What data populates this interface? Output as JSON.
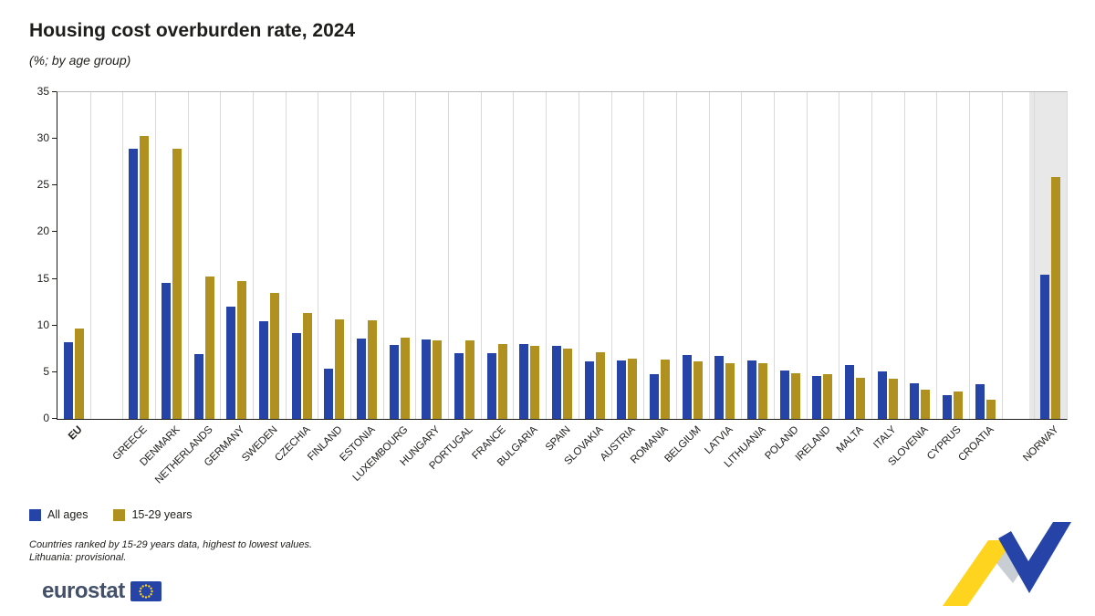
{
  "header": {
    "title": "Housing cost overburden rate, 2024",
    "subtitle": "(%; by age group)"
  },
  "footnotes": [
    "Countries ranked by 15-29 years data, highest to lowest values.",
    "Lithuania: provisional."
  ],
  "logo": {
    "text": "eurostat"
  },
  "chart_data": {
    "type": "bar",
    "title": "Housing cost overburden rate, 2024",
    "subtitle": "(%; by age group)",
    "ylim": [
      0,
      35
    ],
    "yticks": [
      0,
      5,
      10,
      15,
      20,
      25,
      30,
      35
    ],
    "grid": "vertical category separators only",
    "legend_position": "bottom-left",
    "highlight_band_color": "#e8e8e8",
    "series": [
      {
        "id": "all_ages",
        "name": "All ages",
        "color": "#2644A7"
      },
      {
        "id": "y15_29",
        "name": "15-29 years",
        "color": "#B09120"
      }
    ],
    "groups": [
      {
        "label": "EU",
        "section": "eu",
        "bold": true,
        "values": [
          8.2,
          9.7
        ]
      },
      {
        "label": "GREECE",
        "section": "members",
        "values": [
          28.9,
          30.3
        ]
      },
      {
        "label": "DENMARK",
        "section": "members",
        "values": [
          14.6,
          28.9
        ]
      },
      {
        "label": "NETHERLANDS",
        "section": "members",
        "values": [
          6.9,
          15.3
        ]
      },
      {
        "label": "GERMANY",
        "section": "members",
        "values": [
          12.0,
          14.8
        ]
      },
      {
        "label": "SWEDEN",
        "section": "members",
        "values": [
          10.5,
          13.5
        ]
      },
      {
        "label": "CZECHIA",
        "section": "members",
        "values": [
          9.2,
          11.3
        ]
      },
      {
        "label": "FINLAND",
        "section": "members",
        "values": [
          5.4,
          10.7
        ]
      },
      {
        "label": "ESTONIA",
        "section": "members",
        "values": [
          8.6,
          10.6
        ]
      },
      {
        "label": "LUXEMBOURG",
        "section": "members",
        "values": [
          7.9,
          8.7
        ]
      },
      {
        "label": "HUNGARY",
        "section": "members",
        "values": [
          8.5,
          8.4
        ]
      },
      {
        "label": "PORTUGAL",
        "section": "members",
        "values": [
          7.0,
          8.4
        ]
      },
      {
        "label": "FRANCE",
        "section": "members",
        "values": [
          7.0,
          8.0
        ]
      },
      {
        "label": "BULGARIA",
        "section": "members",
        "values": [
          8.0,
          7.8
        ]
      },
      {
        "label": "SPAIN",
        "section": "members",
        "values": [
          7.8,
          7.5
        ]
      },
      {
        "label": "SLOVAKIA",
        "section": "members",
        "values": [
          6.2,
          7.1
        ]
      },
      {
        "label": "AUSTRIA",
        "section": "members",
        "values": [
          6.3,
          6.5
        ]
      },
      {
        "label": "ROMANIA",
        "section": "members",
        "values": [
          4.8,
          6.4
        ]
      },
      {
        "label": "BELGIUM",
        "section": "members",
        "values": [
          6.8,
          6.2
        ]
      },
      {
        "label": "LATVIA",
        "section": "members",
        "values": [
          6.7,
          6.0
        ]
      },
      {
        "label": "LITHUANIA",
        "section": "members",
        "values": [
          6.3,
          6.0
        ]
      },
      {
        "label": "POLAND",
        "section": "members",
        "values": [
          5.2,
          4.9
        ]
      },
      {
        "label": "IRELAND",
        "section": "members",
        "values": [
          4.6,
          4.8
        ]
      },
      {
        "label": "MALTA",
        "section": "members",
        "values": [
          5.8,
          4.4
        ]
      },
      {
        "label": "ITALY",
        "section": "members",
        "values": [
          5.1,
          4.3
        ]
      },
      {
        "label": "SLOVENIA",
        "section": "members",
        "values": [
          3.8,
          3.1
        ]
      },
      {
        "label": "CYPRUS",
        "section": "members",
        "values": [
          2.5,
          2.9
        ]
      },
      {
        "label": "CROATIA",
        "section": "members",
        "values": [
          3.7,
          2.1
        ]
      },
      {
        "label": "NORWAY",
        "section": "efta",
        "highlight": true,
        "values": [
          15.4,
          25.9
        ]
      }
    ]
  }
}
